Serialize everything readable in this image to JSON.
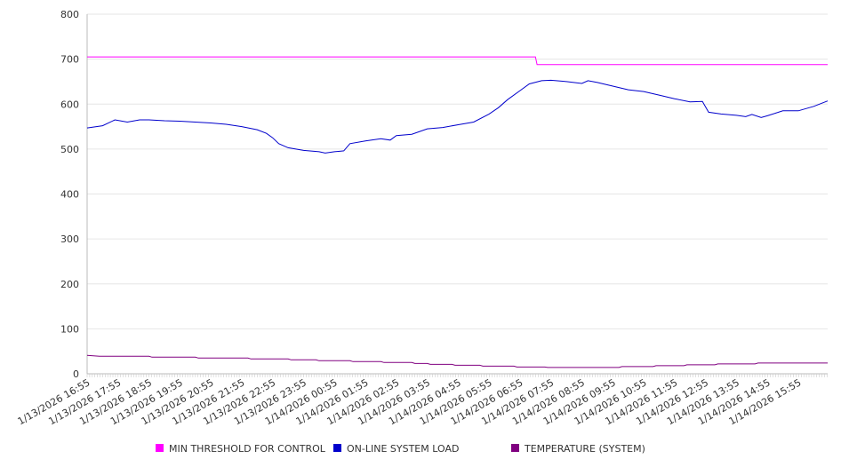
{
  "chart_data": {
    "type": "line",
    "title": "",
    "xlabel": "",
    "ylabel": "",
    "ylim": [
      0,
      800
    ],
    "yticks": [
      "0",
      "100",
      "200",
      "300",
      "400",
      "500",
      "600",
      "700",
      "800"
    ],
    "xlim_hours": [
      0,
      23.95
    ],
    "xtick_labels": [
      "1/13/2026 16:55",
      "1/13/2026 17:55",
      "1/13/2026 18:55",
      "1/13/2026 19:55",
      "1/13/2026 20:55",
      "1/13/2026 21:55",
      "1/13/2026 22:55",
      "1/13/2026 23:55",
      "1/14/2026 00:55",
      "1/14/2026 01:55",
      "1/14/2026 02:55",
      "1/14/2026 03:55",
      "1/14/2026 04:55",
      "1/14/2026 05:55",
      "1/14/2026 06:55",
      "1/14/2026 07:55",
      "1/14/2026 08:55",
      "1/14/2026 09:55",
      "1/14/2026 10:55",
      "1/14/2026 11:55",
      "1/14/2026 12:55",
      "1/14/2026 13:55",
      "1/14/2026 14:55",
      "1/14/2026 15:55"
    ],
    "grid": true,
    "legend_position": "bottom",
    "series": [
      {
        "name": "MIN THRESHOLD FOR CONTROL",
        "color": "#ff00ff",
        "points": [
          [
            0,
            705
          ],
          [
            14.5,
            705
          ],
          [
            14.55,
            688
          ],
          [
            23.95,
            688
          ]
        ]
      },
      {
        "name": "ON-LINE SYSTEM LOAD",
        "color": "#0000cc",
        "points": [
          [
            0,
            547
          ],
          [
            0.5,
            552
          ],
          [
            0.9,
            565
          ],
          [
            1.3,
            560
          ],
          [
            1.7,
            565
          ],
          [
            2,
            565
          ],
          [
            2.5,
            563
          ],
          [
            3,
            562
          ],
          [
            3.5,
            560
          ],
          [
            4,
            558
          ],
          [
            4.5,
            555
          ],
          [
            5,
            550
          ],
          [
            5.5,
            543
          ],
          [
            5.8,
            535
          ],
          [
            6,
            525
          ],
          [
            6.2,
            512
          ],
          [
            6.5,
            503
          ],
          [
            7,
            497
          ],
          [
            7.5,
            494
          ],
          [
            7.7,
            491
          ],
          [
            8,
            494
          ],
          [
            8.3,
            496
          ],
          [
            8.5,
            512
          ],
          [
            9,
            518
          ],
          [
            9.5,
            523
          ],
          [
            9.8,
            520
          ],
          [
            10,
            530
          ],
          [
            10.5,
            533
          ],
          [
            11,
            545
          ],
          [
            11.5,
            548
          ],
          [
            12,
            554
          ],
          [
            12.5,
            560
          ],
          [
            13,
            578
          ],
          [
            13.3,
            592
          ],
          [
            13.6,
            610
          ],
          [
            14,
            630
          ],
          [
            14.3,
            645
          ],
          [
            14.7,
            652
          ],
          [
            15,
            653
          ],
          [
            15.5,
            650
          ],
          [
            16,
            646
          ],
          [
            16.2,
            652
          ],
          [
            16.5,
            648
          ],
          [
            17,
            640
          ],
          [
            17.5,
            632
          ],
          [
            18,
            628
          ],
          [
            18.5,
            620
          ],
          [
            19,
            612
          ],
          [
            19.5,
            605
          ],
          [
            19.9,
            606
          ],
          [
            20.1,
            582
          ],
          [
            20.5,
            578
          ],
          [
            21,
            575
          ],
          [
            21.3,
            572
          ],
          [
            21.5,
            577
          ],
          [
            21.8,
            570
          ],
          [
            22,
            574
          ],
          [
            22.5,
            585
          ],
          [
            23,
            585
          ],
          [
            23.5,
            595
          ],
          [
            23.95,
            607
          ]
        ]
      },
      {
        "name": "TEMPERATURE (SYSTEM)",
        "color": "#800080",
        "points": [
          [
            0,
            41
          ],
          [
            0.4,
            39
          ],
          [
            2,
            39
          ],
          [
            2.1,
            37
          ],
          [
            3.5,
            37
          ],
          [
            3.6,
            35
          ],
          [
            5.2,
            35
          ],
          [
            5.3,
            33
          ],
          [
            6.5,
            33
          ],
          [
            6.6,
            31
          ],
          [
            7.4,
            31
          ],
          [
            7.5,
            29
          ],
          [
            8.5,
            29
          ],
          [
            8.6,
            27
          ],
          [
            9.5,
            27
          ],
          [
            9.6,
            25
          ],
          [
            10.5,
            25
          ],
          [
            10.6,
            23
          ],
          [
            11,
            23
          ],
          [
            11.1,
            21
          ],
          [
            11.8,
            21
          ],
          [
            11.9,
            19
          ],
          [
            12.7,
            19
          ],
          [
            12.8,
            17
          ],
          [
            13.8,
            17
          ],
          [
            13.9,
            15
          ],
          [
            14.8,
            15
          ],
          [
            14.9,
            14
          ],
          [
            17.2,
            14
          ],
          [
            17.3,
            16
          ],
          [
            18.3,
            16
          ],
          [
            18.4,
            18
          ],
          [
            19.3,
            18
          ],
          [
            19.4,
            20
          ],
          [
            20.3,
            20
          ],
          [
            20.4,
            22
          ],
          [
            21.6,
            22
          ],
          [
            21.7,
            24
          ],
          [
            23.95,
            24
          ]
        ]
      }
    ]
  }
}
